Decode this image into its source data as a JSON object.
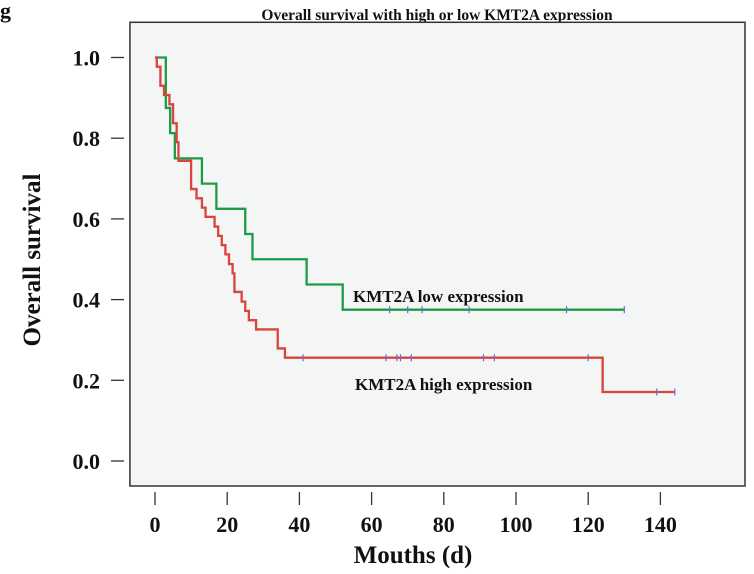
{
  "panel_label": "g",
  "chart_data": {
    "type": "line",
    "subtype": "kaplan-meier step",
    "title": "Overall survival with high or low KMT2A expression",
    "xlabel": "Mouths (d)",
    "ylabel": "Overall survival",
    "xlim": [
      -5,
      158
    ],
    "ylim": [
      -0.07,
      1.06
    ],
    "xticks": [
      "0",
      "20",
      "40",
      "60",
      "80",
      "100",
      "120",
      "140"
    ],
    "yticks": [
      "0.0",
      "0.2",
      "0.4",
      "0.6",
      "0.8",
      "1.0"
    ],
    "grid": false,
    "background": "#f4f5f5",
    "series": [
      {
        "name": "KMT2A low expression",
        "color": "#1f9a47",
        "steps": [
          [
            0,
            1.0
          ],
          [
            3,
            0.875
          ],
          [
            4.2,
            0.8125
          ],
          [
            5.5,
            0.75
          ],
          [
            13,
            0.6875
          ],
          [
            17,
            0.625
          ],
          [
            25,
            0.5625
          ],
          [
            27,
            0.5
          ],
          [
            42,
            0.4375
          ],
          [
            52,
            0.375
          ]
        ],
        "end": 130,
        "censored": [
          65,
          70,
          74,
          87,
          114,
          130
        ]
      },
      {
        "name": "KMT2A high expression",
        "color": "#d9443c",
        "steps": [
          [
            0,
            1.0
          ],
          [
            0.5,
            0.977
          ],
          [
            1.5,
            0.93
          ],
          [
            2.5,
            0.907
          ],
          [
            4,
            0.884
          ],
          [
            5,
            0.837
          ],
          [
            6,
            0.79
          ],
          [
            6.5,
            0.744
          ],
          [
            10,
            0.674
          ],
          [
            11.5,
            0.651
          ],
          [
            13,
            0.628
          ],
          [
            14,
            0.605
          ],
          [
            16.5,
            0.581
          ],
          [
            17.5,
            0.558
          ],
          [
            18.5,
            0.535
          ],
          [
            19.5,
            0.512
          ],
          [
            20.5,
            0.488
          ],
          [
            21.5,
            0.465
          ],
          [
            22,
            0.419
          ],
          [
            24,
            0.395
          ],
          [
            25,
            0.372
          ],
          [
            26,
            0.349
          ],
          [
            28,
            0.326
          ],
          [
            34,
            0.279
          ],
          [
            36,
            0.256
          ],
          [
            124,
            0.171
          ]
        ],
        "end": 144,
        "censored": [
          41,
          64,
          67,
          68,
          71,
          91,
          94,
          120,
          139,
          144
        ]
      }
    ],
    "censor_mark_color": "#6a6ad0",
    "annotations": [
      "KMT2A low expression",
      "KMT2A high expression"
    ]
  }
}
